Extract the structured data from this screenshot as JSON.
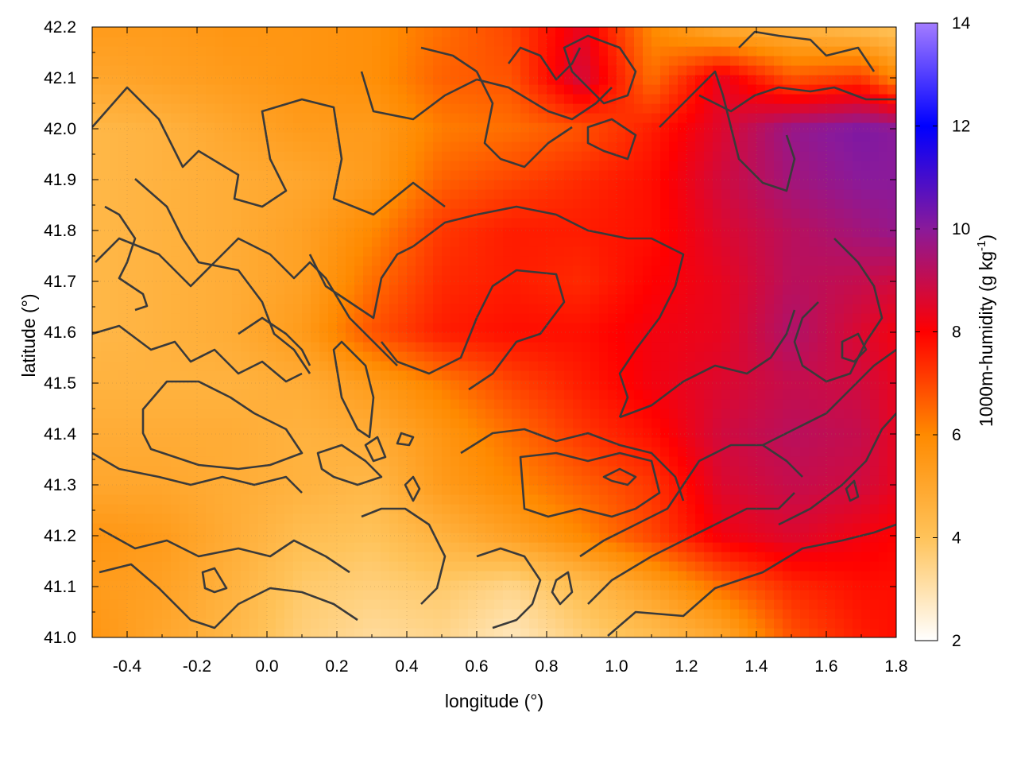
{
  "chart_data": {
    "type": "heatmap",
    "xlabel": "longitude (°)",
    "ylabel": "latitude (°)",
    "colorbar_label": "1000m-humidity (g kg",
    "colorbar_label_superscript": "-1",
    "colorbar_label_close": ")",
    "xlim": [
      -0.5,
      1.8
    ],
    "ylim": [
      41.0,
      42.2
    ],
    "x_ticks": [
      {
        "value": -0.4,
        "label": "-0.4"
      },
      {
        "value": -0.2,
        "label": "-0.2"
      },
      {
        "value": 0.0,
        "label": "0.0"
      },
      {
        "value": 0.2,
        "label": "0.2"
      },
      {
        "value": 0.4,
        "label": "0.4"
      },
      {
        "value": 0.6,
        "label": "0.6"
      },
      {
        "value": 0.8,
        "label": "0.8"
      },
      {
        "value": 1.0,
        "label": "1.0"
      },
      {
        "value": 1.2,
        "label": "1.2"
      },
      {
        "value": 1.4,
        "label": "1.4"
      },
      {
        "value": 1.6,
        "label": "1.6"
      },
      {
        "value": 1.8,
        "label": "1.8"
      }
    ],
    "y_ticks": [
      {
        "value": 41.0,
        "label": "41.0"
      },
      {
        "value": 41.1,
        "label": "41.1"
      },
      {
        "value": 41.2,
        "label": "41.2"
      },
      {
        "value": 41.3,
        "label": "41.3"
      },
      {
        "value": 41.4,
        "label": "41.4"
      },
      {
        "value": 41.5,
        "label": "41.5"
      },
      {
        "value": 41.6,
        "label": "41.6"
      },
      {
        "value": 41.7,
        "label": "41.7"
      },
      {
        "value": 41.8,
        "label": "41.8"
      },
      {
        "value": 41.9,
        "label": "41.9"
      },
      {
        "value": 42.0,
        "label": "42.0"
      },
      {
        "value": 42.1,
        "label": "42.1"
      },
      {
        "value": 42.2,
        "label": "42.2"
      }
    ],
    "colorbar": {
      "range": [
        2,
        14
      ],
      "ticks": [
        {
          "value": 2,
          "label": "2"
        },
        {
          "value": 4,
          "label": "4"
        },
        {
          "value": 6,
          "label": "6"
        },
        {
          "value": 8,
          "label": "8"
        },
        {
          "value": 10,
          "label": "10"
        },
        {
          "value": 12,
          "label": "12"
        },
        {
          "value": 14,
          "label": "14"
        }
      ],
      "colors": [
        {
          "value": 2,
          "color": "#ffffff"
        },
        {
          "value": 4,
          "color": "#ffc35a"
        },
        {
          "value": 6,
          "color": "#ff8a00"
        },
        {
          "value": 8,
          "color": "#ff0000"
        },
        {
          "value": 10,
          "color": "#8a1a9a"
        },
        {
          "value": 12,
          "color": "#0000ff"
        },
        {
          "value": 14,
          "color": "#a37cff"
        }
      ]
    },
    "grid": true,
    "contours": true,
    "field_samples": {
      "x": [
        -0.5,
        -0.3,
        -0.1,
        0.1,
        0.3,
        0.5,
        0.7,
        0.9,
        1.1,
        1.3,
        1.5,
        1.7,
        1.8
      ],
      "y": [
        41.0,
        41.1,
        41.2,
        41.3,
        41.4,
        41.5,
        41.6,
        41.7,
        41.8,
        41.9,
        42.0,
        42.1,
        42.2
      ],
      "values": [
        [
          5.6,
          5.0,
          4.4,
          3.6,
          3.2,
          3.4,
          2.8,
          3.6,
          4.2,
          5.0,
          6.8,
          7.6,
          7.8
        ],
        [
          5.4,
          5.2,
          4.6,
          3.8,
          3.6,
          3.8,
          3.4,
          4.2,
          5.2,
          6.4,
          7.4,
          7.8,
          7.8
        ],
        [
          5.6,
          5.4,
          4.8,
          4.2,
          4.0,
          4.6,
          5.2,
          6.0,
          7.0,
          8.2,
          8.6,
          8.2,
          8.0
        ],
        [
          5.0,
          5.0,
          4.8,
          4.6,
          4.4,
          5.4,
          6.0,
          6.6,
          7.2,
          8.6,
          9.0,
          8.8,
          8.4
        ],
        [
          4.8,
          4.8,
          4.8,
          4.6,
          4.8,
          5.6,
          6.4,
          7.2,
          7.8,
          8.8,
          9.2,
          9.0,
          8.4
        ],
        [
          4.6,
          4.6,
          4.6,
          4.8,
          5.4,
          6.2,
          7.0,
          7.6,
          8.2,
          8.6,
          9.0,
          8.8,
          8.4
        ],
        [
          4.4,
          4.6,
          4.8,
          5.4,
          6.8,
          7.6,
          7.8,
          7.8,
          8.2,
          8.4,
          9.4,
          8.6,
          8.2
        ],
        [
          4.4,
          4.6,
          4.8,
          5.2,
          6.4,
          7.4,
          7.6,
          7.4,
          8.0,
          8.4,
          9.2,
          9.0,
          8.8
        ],
        [
          4.4,
          4.6,
          4.8,
          5.2,
          6.0,
          7.2,
          7.6,
          7.6,
          7.8,
          8.6,
          9.2,
          9.6,
          9.8
        ],
        [
          4.4,
          4.6,
          4.8,
          5.0,
          5.4,
          6.6,
          7.0,
          7.4,
          7.8,
          8.8,
          9.6,
          10.0,
          10.0
        ],
        [
          4.4,
          4.6,
          5.0,
          5.4,
          5.4,
          6.2,
          6.4,
          6.8,
          7.6,
          8.6,
          9.8,
          10.2,
          10.0
        ],
        [
          5.0,
          5.2,
          5.4,
          5.6,
          5.8,
          6.6,
          6.8,
          8.8,
          6.4,
          8.4,
          6.8,
          7.2,
          6.0
        ],
        [
          5.4,
          5.4,
          5.6,
          5.6,
          5.8,
          6.4,
          7.0,
          8.4,
          6.0,
          4.8,
          4.6,
          4.2,
          4.0
        ]
      ]
    }
  }
}
